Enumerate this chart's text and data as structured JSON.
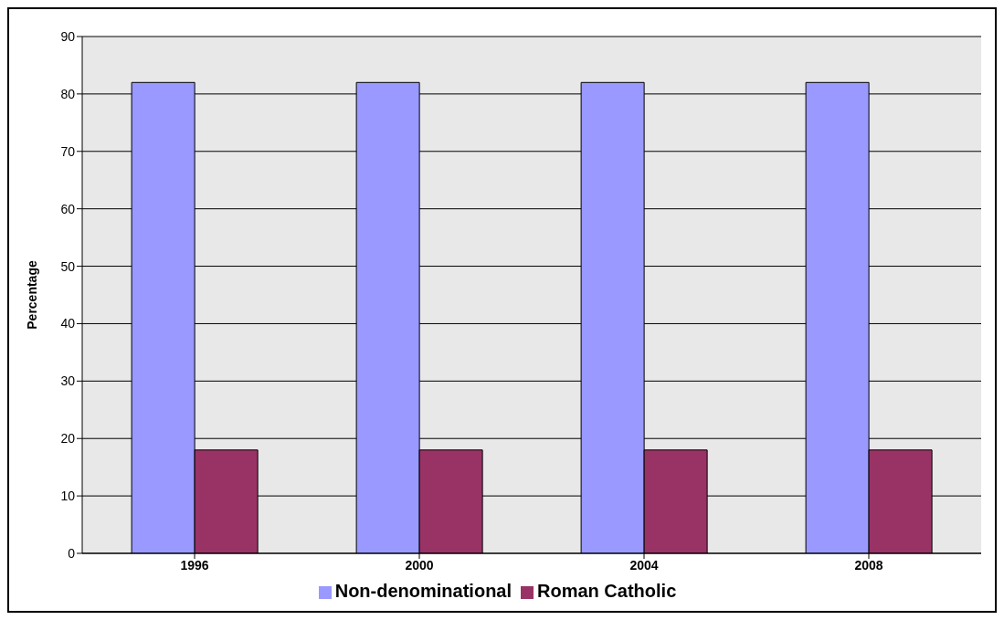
{
  "chart_data": {
    "type": "bar",
    "ylabel": "Percentage",
    "categories": [
      "1996",
      "2000",
      "2004",
      "2008"
    ],
    "series": [
      {
        "name": "Non-denominational",
        "color": "#9999ff",
        "values": [
          82,
          82,
          82,
          82
        ]
      },
      {
        "name": "Roman Catholic",
        "color": "#993366",
        "values": [
          18,
          18,
          18,
          18
        ]
      }
    ],
    "ylim": [
      0,
      90
    ],
    "yticks": [
      0,
      10,
      20,
      30,
      40,
      50,
      60,
      70,
      80,
      90
    ],
    "grid": "y",
    "legend": "bottom"
  }
}
